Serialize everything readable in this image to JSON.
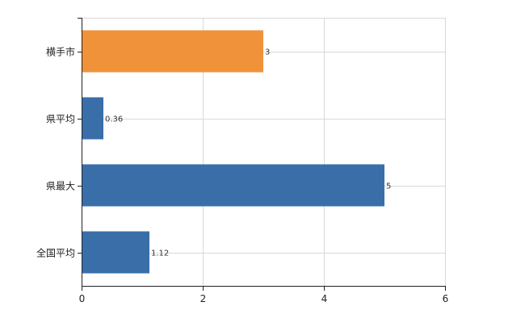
{
  "chart_data": {
    "type": "bar",
    "orientation": "horizontal",
    "categories": [
      "横手市",
      "県平均",
      "県最大",
      "全国平均"
    ],
    "values": [
      3,
      0.36,
      5,
      1.12
    ],
    "value_labels": [
      "3",
      "0.36",
      "5",
      "1.12"
    ],
    "bar_colors": [
      "#f0923a",
      "#3a6ea8",
      "#3a6ea8",
      "#3a6ea8"
    ],
    "xlim": [
      0,
      6
    ],
    "xticks": [
      0,
      2,
      4,
      6
    ],
    "xtick_labels": [
      "0",
      "2",
      "4",
      "6"
    ],
    "grid": true,
    "legend": "none",
    "title": "",
    "xlabel": "",
    "ylabel": ""
  },
  "colors": {
    "highlight": "#f0923a",
    "default_bar": "#3a6ea8",
    "grid": "#d9d9d9",
    "axis": "#222222"
  }
}
